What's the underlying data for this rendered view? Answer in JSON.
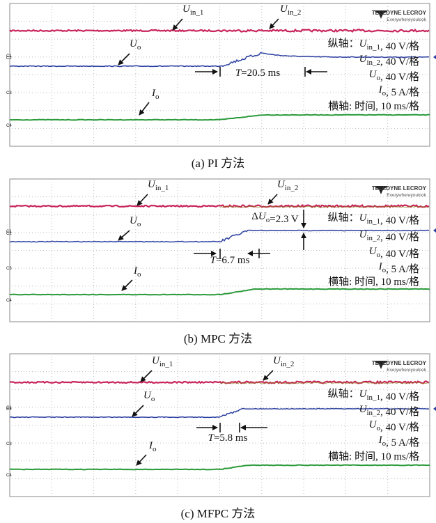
{
  "panels": [
    {
      "caption": "(a) PI 方法",
      "labels": [
        {
          "symbol": "U",
          "sub": "in_1"
        },
        {
          "symbol": "U",
          "sub": "in_2"
        },
        {
          "symbol": "U",
          "sub": "o"
        },
        {
          "symbol": "I",
          "sub": "o"
        }
      ],
      "time": {
        "symbol": "T",
        "rest": "=20.5 ms"
      },
      "scale": [
        {
          "prefix": "纵轴：",
          "symbol": "U",
          "sub": "in_1",
          "rest": ", 40 V/格"
        },
        {
          "symbol": "U",
          "sub": "in_2",
          "rest": ", 40 V/格"
        },
        {
          "symbol": "U",
          "sub": "o",
          "rest": ", 40 V/格"
        },
        {
          "symbol": "I",
          "sub": "o",
          "rest": ", 5 A/格"
        },
        {
          "prefix": "横轴: 时间, 10 ms/格"
        }
      ],
      "brand": {
        "name": "TELEDYNE LECROY",
        "tagline": "Everywhereyoulook"
      },
      "channels": [
        "C1",
        "C2",
        "C3",
        "C4"
      ]
    },
    {
      "caption": "(b) MPC 方法",
      "labels": [
        {
          "symbol": "U",
          "sub": "in_1"
        },
        {
          "symbol": "U",
          "sub": "in_2"
        },
        {
          "symbol": "U",
          "sub": "o"
        },
        {
          "symbol": "I",
          "sub": "o"
        }
      ],
      "time": {
        "symbol": "T",
        "rest": "=6.7 ms"
      },
      "delta": {
        "prefix": "Δ",
        "symbol": "U",
        "sub": "o",
        "rest": "=2.3 V"
      },
      "scale": [
        {
          "prefix": "纵轴：",
          "symbol": "U",
          "sub": "in_1",
          "rest": ", 40 V/格"
        },
        {
          "symbol": "U",
          "sub": "in_2",
          "rest": ", 40 V/格"
        },
        {
          "symbol": "U",
          "sub": "o",
          "rest": ", 40 V/格"
        },
        {
          "symbol": "I",
          "sub": "o",
          "rest": ", 5 A/格"
        },
        {
          "prefix": "横轴: 时间, 10 ms/格"
        }
      ],
      "brand": {
        "name": "TELEDYNE LECROY",
        "tagline": "Everywhereyoulook"
      },
      "channels": [
        "C1",
        "C2",
        "C3",
        "C4"
      ]
    },
    {
      "caption": "(c) MFPC 方法",
      "labels": [
        {
          "symbol": "U",
          "sub": "in_1"
        },
        {
          "symbol": "U",
          "sub": "in_2"
        },
        {
          "symbol": "U",
          "sub": "o"
        },
        {
          "symbol": "I",
          "sub": "o"
        }
      ],
      "time": {
        "symbol": "T",
        "rest": "=5.8 ms"
      },
      "scale": [
        {
          "prefix": "纵轴：",
          "symbol": "U",
          "sub": "in_1",
          "rest": ", 40 V/格"
        },
        {
          "symbol": "U",
          "sub": "in_2",
          "rest": ", 40 V/格"
        },
        {
          "symbol": "U",
          "sub": "o",
          "rest": ", 40 V/格"
        },
        {
          "symbol": "I",
          "sub": "o",
          "rest": ", 5 A/格"
        },
        {
          "prefix": "横轴: 时间, 10 ms/格"
        }
      ],
      "brand": {
        "name": "TELEDYNE LECROY",
        "tagline": "Everywhereyoulook"
      },
      "channels": [
        "C1",
        "C2",
        "C3",
        "C4"
      ]
    }
  ]
}
